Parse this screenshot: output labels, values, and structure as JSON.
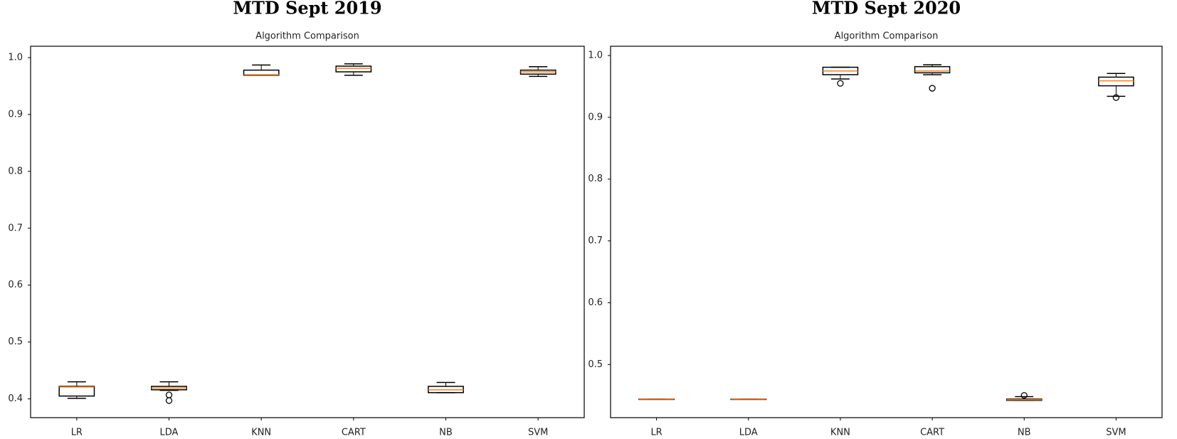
{
  "chart_data": [
    {
      "type": "box",
      "title": "MTD Sept 2019",
      "subtitle": "Algorithm Comparison",
      "categories": [
        "LR",
        "LDA",
        "KNN",
        "CART",
        "NB",
        "SVM"
      ],
      "boxes": [
        {
          "whislo": 0.401,
          "q1": 0.405,
          "med": 0.421,
          "q3": 0.422,
          "whishi": 0.43,
          "fliers": []
        },
        {
          "whislo": 0.415,
          "q1": 0.416,
          "med": 0.419,
          "q3": 0.422,
          "whishi": 0.43,
          "fliers": [
            0.407,
            0.397
          ]
        },
        {
          "whislo": 0.969,
          "q1": 0.969,
          "med": 0.97,
          "q3": 0.978,
          "whishi": 0.987,
          "fliers": []
        },
        {
          "whislo": 0.969,
          "q1": 0.975,
          "med": 0.981,
          "q3": 0.985,
          "whishi": 0.989,
          "fliers": []
        },
        {
          "whislo": 0.411,
          "q1": 0.411,
          "med": 0.416,
          "q3": 0.422,
          "whishi": 0.429,
          "fliers": []
        },
        {
          "whislo": 0.967,
          "q1": 0.971,
          "med": 0.975,
          "q3": 0.978,
          "whishi": 0.984,
          "fliers": []
        }
      ],
      "color": "#000000",
      "median_color": "#ff7f0e",
      "ylim": [
        0.367,
        1.02
      ],
      "yticks": [
        0.4,
        0.5,
        0.6,
        0.7,
        0.8,
        0.9,
        {
          "value": 1.0,
          "label": "1.0"
        }
      ]
    },
    {
      "type": "box",
      "title": "MTD Sept 2020",
      "subtitle": "Algorithm Comparison",
      "categories": [
        "LR",
        "LDA",
        "KNN",
        "CART",
        "NB",
        "SVM"
      ],
      "boxes": [
        {
          "whislo": 0.444,
          "q1": 0.444,
          "med": 0.444,
          "q3": 0.444,
          "whishi": 0.444,
          "fliers": []
        },
        {
          "whislo": 0.444,
          "q1": 0.444,
          "med": 0.444,
          "q3": 0.444,
          "whishi": 0.444,
          "fliers": []
        },
        {
          "whislo": 0.962,
          "q1": 0.969,
          "med": 0.975,
          "q3": 0.981,
          "whishi": 0.981,
          "fliers": [
            0.955
          ]
        },
        {
          "whislo": 0.969,
          "q1": 0.972,
          "med": 0.975,
          "q3": 0.982,
          "whishi": 0.985,
          "fliers": [
            0.947
          ]
        },
        {
          "whislo": 0.442,
          "q1": 0.442,
          "med": 0.443,
          "q3": 0.444,
          "whishi": 0.448,
          "fliers": [
            0.45
          ]
        },
        {
          "whislo": 0.934,
          "q1": 0.951,
          "med": 0.959,
          "q3": 0.965,
          "whishi": 0.971,
          "fliers": [
            0.932
          ]
        }
      ],
      "color": "#000000",
      "median_color": "#ff7f0e",
      "ylim": [
        0.414,
        1.015
      ],
      "yticks": [
        0.5,
        0.6,
        0.7,
        0.8,
        0.9,
        {
          "value": 1.0,
          "label": "1.0"
        }
      ]
    }
  ]
}
